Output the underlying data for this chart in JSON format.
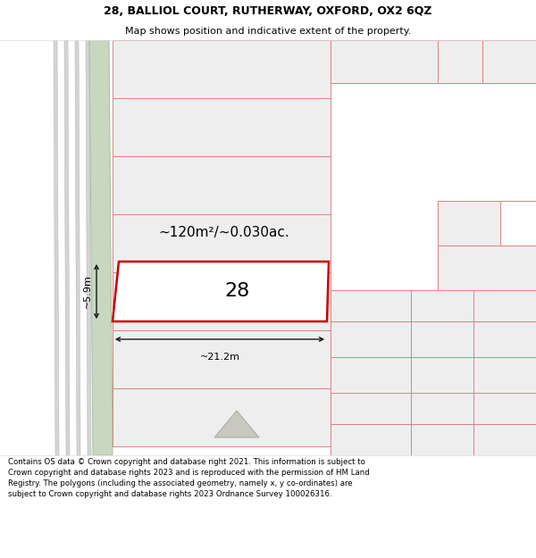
{
  "title_line1": "28, BALLIOL COURT, RUTHERWAY, OXFORD, OX2 6QZ",
  "title_line2": "Map shows position and indicative extent of the property.",
  "footer_text": "Contains OS data © Crown copyright and database right 2021. This information is subject to Crown copyright and database rights 2023 and is reproduced with the permission of HM Land Registry. The polygons (including the associated geometry, namely x, y co-ordinates) are subject to Crown copyright and database rights 2023 Ordnance Survey 100026316.",
  "bg_color": "#ffffff",
  "parcel_fill": "#eeeeee",
  "parcel_border": "#e08080",
  "highlight_fill": "#ffffff",
  "highlight_border": "#cc0000",
  "road_fill": "#c8d8c0",
  "road_border": "#aabaa2",
  "gray_lines": "#cccccc",
  "dim_color": "#000000",
  "label_color": "#000000",
  "area_label": "~120m²/~0.030ac.",
  "number_label": "28",
  "dim_width": "~21.2m",
  "dim_height": "~5.9m",
  "title_fontsize": 9,
  "subtitle_fontsize": 8,
  "footer_fontsize": 6.2,
  "number_fontsize": 16,
  "area_fontsize": 11,
  "dim_fontsize": 8
}
